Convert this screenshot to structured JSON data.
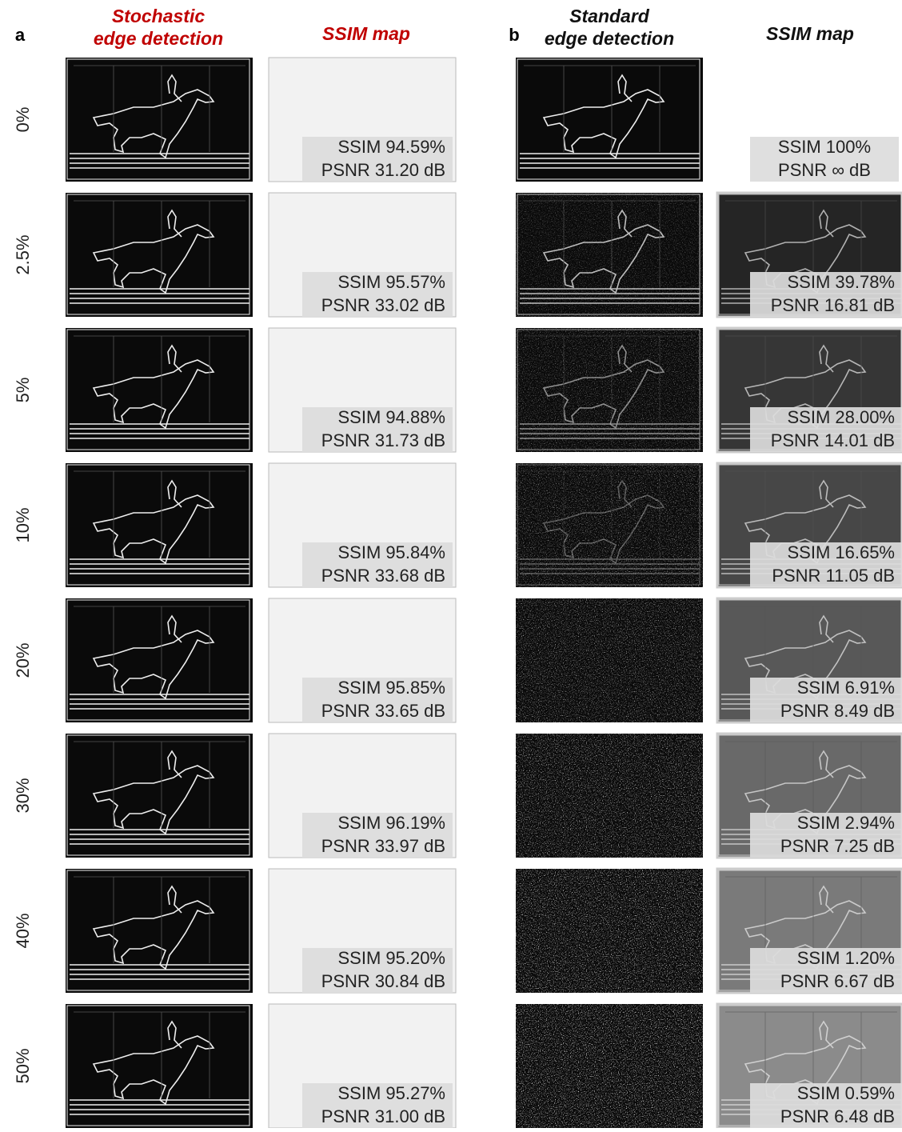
{
  "row_labels": [
    "0%",
    "2.5%",
    "5%",
    "10%",
    "20%",
    "30%",
    "40%",
    "50%"
  ],
  "panels": [
    {
      "label": "a",
      "columns": [
        {
          "title": [
            "Stochastic",
            "edge detection"
          ]
        },
        {
          "title": [
            "SSIM map"
          ]
        }
      ],
      "results": [
        {
          "ssim": "SSIM 94.59%",
          "psnr": "PSNR 31.20 dB"
        },
        {
          "ssim": "SSIM 95.57%",
          "psnr": "PSNR 33.02 dB"
        },
        {
          "ssim": "SSIM 94.88%",
          "psnr": "PSNR 31.73 dB"
        },
        {
          "ssim": "SSIM 95.84%",
          "psnr": "PSNR 33.68 dB"
        },
        {
          "ssim": "SSIM 95.85%",
          "psnr": "PSNR 33.65 dB"
        },
        {
          "ssim": "SSIM 96.19%",
          "psnr": "PSNR 33.97 dB"
        },
        {
          "ssim": "SSIM 95.20%",
          "psnr": "PSNR 30.84 dB"
        },
        {
          "ssim": "SSIM 95.27%",
          "psnr": "PSNR 31.00 dB"
        }
      ]
    },
    {
      "label": "b",
      "columns": [
        {
          "title": [
            "Standard",
            "edge detection"
          ]
        },
        {
          "title": [
            "SSIM map"
          ]
        }
      ],
      "results": [
        {
          "ssim": "SSIM 100%",
          "psnr": "PSNR ∞ dB"
        },
        {
          "ssim": "SSIM 39.78%",
          "psnr": "PSNR 16.81 dB"
        },
        {
          "ssim": "SSIM 28.00%",
          "psnr": "PSNR 14.01 dB"
        },
        {
          "ssim": "SSIM 16.65%",
          "psnr": "PSNR 11.05 dB"
        },
        {
          "ssim": "SSIM 6.91%",
          "psnr": "PSNR 8.49 dB"
        },
        {
          "ssim": "SSIM 2.94%",
          "psnr": "PSNR 7.25 dB"
        },
        {
          "ssim": "SSIM 1.20%",
          "psnr": "PSNR 6.67 dB"
        },
        {
          "ssim": "SSIM 0.59%",
          "psnr": "PSNR 6.48 dB"
        }
      ]
    }
  ]
}
